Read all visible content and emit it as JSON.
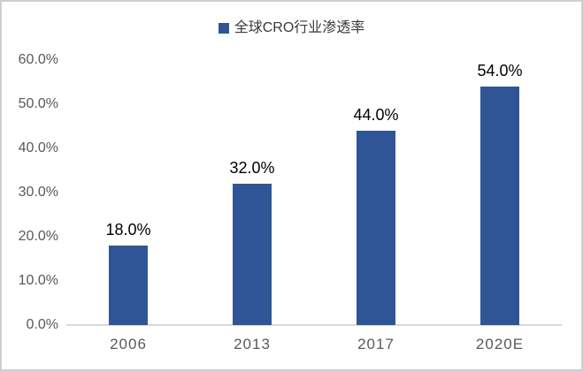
{
  "chart": {
    "legend_label": "全球CRO行业渗透率"
  },
  "chart_data": {
    "type": "bar",
    "title": "全球CRO行业渗透率",
    "categories": [
      "2006",
      "2013",
      "2017",
      "2020E"
    ],
    "values": [
      18.0,
      32.0,
      44.0,
      54.0
    ],
    "data_labels": [
      "18.0%",
      "32.0%",
      "44.0%",
      "54.0%"
    ],
    "xlabel": "",
    "ylabel": "",
    "ylim": [
      0,
      60
    ],
    "ytick_step": 10,
    "ytick_labels": [
      "0.0%",
      "10.0%",
      "20.0%",
      "30.0%",
      "40.0%",
      "50.0%",
      "60.0%"
    ],
    "grid": false,
    "legend_position": "top-center",
    "colors": {
      "bar": "#2F5597",
      "axis_line": "#D9D9D9",
      "tick_label": "#595959",
      "data_label": "#000000",
      "legend_text": "#3A3A3A",
      "frame_border": "#CFCFCF",
      "background": "#FFFFFF"
    }
  }
}
